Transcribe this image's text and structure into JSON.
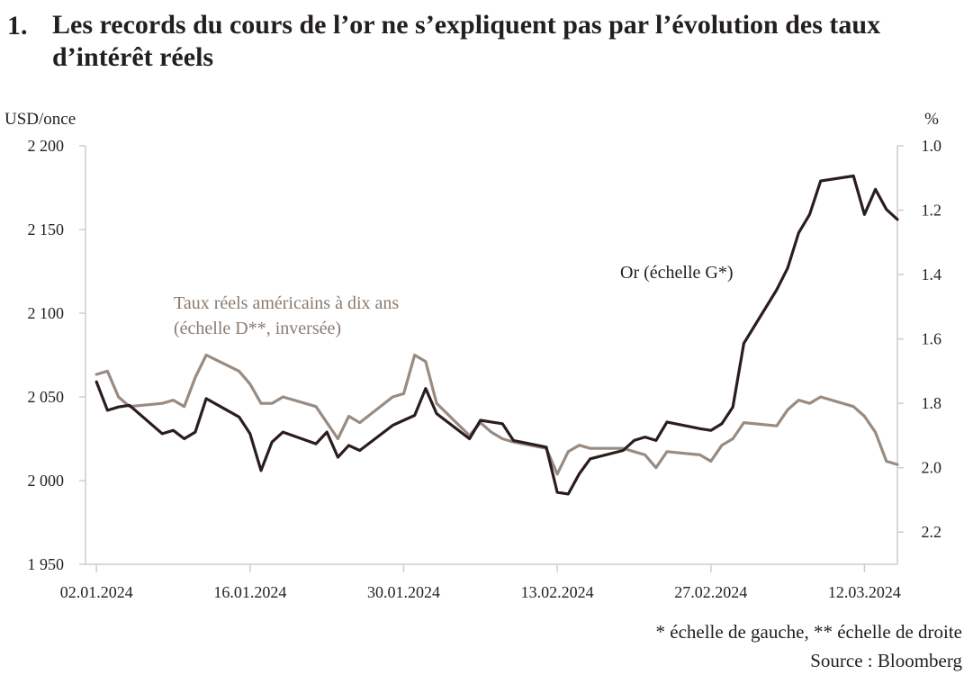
{
  "title": {
    "number": "1.",
    "text": "Les records du cours de l’or ne s’expliquent pas par l’évolution des taux d’intérêt réels"
  },
  "footnotes": {
    "scales": "* échelle de gauche, ** échelle de droite",
    "source": "Source : Bloomberg"
  },
  "colors": {
    "gold": "#2b1d1f",
    "real_rates": "#9a8b80",
    "axis": "#d3ccc6"
  },
  "chart_data": {
    "type": "line",
    "y_left": {
      "label": "USD/once",
      "min": 1950,
      "max": 2200,
      "ticks": [
        1950,
        2000,
        2050,
        2100,
        2150,
        2200
      ],
      "tick_labels": [
        "1 950",
        "2 000",
        "2 050",
        "2 100",
        "2 150",
        "2 200"
      ]
    },
    "y_right": {
      "label": "%",
      "min": 1.0,
      "max": 2.3,
      "inverted": true,
      "ticks": [
        1.0,
        1.2,
        1.4,
        1.6,
        1.8,
        2.0,
        2.2
      ],
      "tick_labels": [
        "1.0",
        "1.2",
        "1.4",
        "1.6",
        "1.8",
        "2.0",
        "2.2"
      ]
    },
    "x": {
      "start": "2024-01-01",
      "end": "2024-03-15",
      "ticks": [
        "2024-01-02",
        "2024-01-16",
        "2024-01-30",
        "2024-02-13",
        "2024-02-27",
        "2024-03-12"
      ],
      "tick_labels": [
        "02.01.2024",
        "16.01.2024",
        "30.01.2024",
        "13.02.2024",
        "27.02.2024",
        "12.03.2024"
      ]
    },
    "series": [
      {
        "name": "Or (échelle G*)",
        "axis": "left",
        "points": [
          [
            "2024-01-02",
            2059
          ],
          [
            "2024-01-03",
            2042
          ],
          [
            "2024-01-04",
            2044
          ],
          [
            "2024-01-05",
            2045
          ],
          [
            "2024-01-08",
            2028
          ],
          [
            "2024-01-09",
            2030
          ],
          [
            "2024-01-10",
            2025
          ],
          [
            "2024-01-11",
            2029
          ],
          [
            "2024-01-12",
            2049
          ],
          [
            "2024-01-15",
            2038
          ],
          [
            "2024-01-16",
            2028
          ],
          [
            "2024-01-17",
            2006
          ],
          [
            "2024-01-18",
            2023
          ],
          [
            "2024-01-19",
            2029
          ],
          [
            "2024-01-22",
            2022
          ],
          [
            "2024-01-23",
            2029
          ],
          [
            "2024-01-24",
            2014
          ],
          [
            "2024-01-25",
            2021
          ],
          [
            "2024-01-26",
            2018
          ],
          [
            "2024-01-29",
            2033
          ],
          [
            "2024-01-30",
            2036
          ],
          [
            "2024-01-31",
            2039
          ],
          [
            "2024-02-01",
            2055
          ],
          [
            "2024-02-02",
            2040
          ],
          [
            "2024-02-05",
            2025
          ],
          [
            "2024-02-06",
            2036
          ],
          [
            "2024-02-07",
            2035
          ],
          [
            "2024-02-08",
            2034
          ],
          [
            "2024-02-09",
            2024
          ],
          [
            "2024-02-12",
            2020
          ],
          [
            "2024-02-13",
            1993
          ],
          [
            "2024-02-14",
            1992
          ],
          [
            "2024-02-15",
            2004
          ],
          [
            "2024-02-16",
            2013
          ],
          [
            "2024-02-19",
            2018
          ],
          [
            "2024-02-20",
            2024
          ],
          [
            "2024-02-21",
            2026
          ],
          [
            "2024-02-22",
            2024
          ],
          [
            "2024-02-23",
            2035
          ],
          [
            "2024-02-26",
            2031
          ],
          [
            "2024-02-27",
            2030
          ],
          [
            "2024-02-28",
            2034
          ],
          [
            "2024-02-29",
            2044
          ],
          [
            "2024-03-01",
            2082
          ],
          [
            "2024-03-04",
            2114
          ],
          [
            "2024-03-05",
            2127
          ],
          [
            "2024-03-06",
            2148
          ],
          [
            "2024-03-07",
            2159
          ],
          [
            "2024-03-08",
            2179
          ],
          [
            "2024-03-11",
            2182
          ],
          [
            "2024-03-12",
            2159
          ],
          [
            "2024-03-13",
            2174
          ],
          [
            "2024-03-14",
            2162
          ],
          [
            "2024-03-15",
            2156
          ]
        ]
      },
      {
        "name": "Taux réels américains à dix ans (échelle D**, inversée)",
        "axis": "right",
        "points": [
          [
            "2024-01-02",
            1.71
          ],
          [
            "2024-01-03",
            1.7
          ],
          [
            "2024-01-04",
            1.78
          ],
          [
            "2024-01-05",
            1.81
          ],
          [
            "2024-01-08",
            1.8
          ],
          [
            "2024-01-09",
            1.79
          ],
          [
            "2024-01-10",
            1.81
          ],
          [
            "2024-01-11",
            1.72
          ],
          [
            "2024-01-12",
            1.65
          ],
          [
            "2024-01-15",
            1.7
          ],
          [
            "2024-01-16",
            1.74
          ],
          [
            "2024-01-17",
            1.8
          ],
          [
            "2024-01-18",
            1.8
          ],
          [
            "2024-01-19",
            1.78
          ],
          [
            "2024-01-22",
            1.81
          ],
          [
            "2024-01-23",
            1.86
          ],
          [
            "2024-01-24",
            1.91
          ],
          [
            "2024-01-25",
            1.84
          ],
          [
            "2024-01-26",
            1.86
          ],
          [
            "2024-01-29",
            1.78
          ],
          [
            "2024-01-30",
            1.77
          ],
          [
            "2024-01-31",
            1.65
          ],
          [
            "2024-02-01",
            1.67
          ],
          [
            "2024-02-02",
            1.8
          ],
          [
            "2024-02-05",
            1.9
          ],
          [
            "2024-02-06",
            1.86
          ],
          [
            "2024-02-07",
            1.89
          ],
          [
            "2024-02-08",
            1.91
          ],
          [
            "2024-02-09",
            1.92
          ],
          [
            "2024-02-12",
            1.94
          ],
          [
            "2024-02-13",
            2.02
          ],
          [
            "2024-02-14",
            1.95
          ],
          [
            "2024-02-15",
            1.93
          ],
          [
            "2024-02-16",
            1.94
          ],
          [
            "2024-02-19",
            1.94
          ],
          [
            "2024-02-20",
            1.95
          ],
          [
            "2024-02-21",
            1.96
          ],
          [
            "2024-02-22",
            2.0
          ],
          [
            "2024-02-23",
            1.95
          ],
          [
            "2024-02-26",
            1.96
          ],
          [
            "2024-02-27",
            1.98
          ],
          [
            "2024-02-28",
            1.93
          ],
          [
            "2024-02-29",
            1.91
          ],
          [
            "2024-03-01",
            1.86
          ],
          [
            "2024-03-04",
            1.87
          ],
          [
            "2024-03-05",
            1.82
          ],
          [
            "2024-03-06",
            1.79
          ],
          [
            "2024-03-07",
            1.8
          ],
          [
            "2024-03-08",
            1.78
          ],
          [
            "2024-03-11",
            1.81
          ],
          [
            "2024-03-12",
            1.84
          ],
          [
            "2024-03-13",
            1.89
          ],
          [
            "2024-03-14",
            1.98
          ],
          [
            "2024-03-15",
            1.99
          ]
        ]
      }
    ],
    "annotations": {
      "gold_label": "Or (échelle G*)",
      "rates_label_line1": "Taux réels américains à dix ans",
      "rates_label_line2": "(échelle D**, inversée)"
    },
    "grid": false
  }
}
